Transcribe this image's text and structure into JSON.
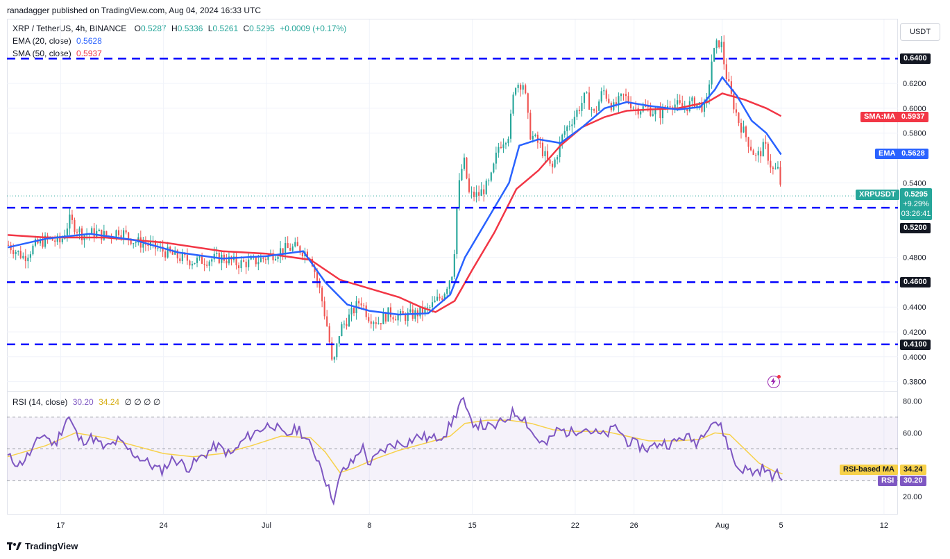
{
  "header": {
    "publisher": "ranadagger published on TradingView.com, Aug 04, 2024 16:33 UTC"
  },
  "legend": {
    "symbol": "XRP / TetherUS, 4h, BINANCE",
    "o_label": "O",
    "o": "0.5287",
    "h_label": "H",
    "h": "0.5336",
    "l_label": "L",
    "l": "0.5261",
    "c_label": "C",
    "c": "0.5295",
    "change": "+0.0009 (+0.17%)",
    "ema_label": "EMA (20, close)",
    "ema": "0.5628",
    "sma_label": "SMA (50, close)",
    "sma": "0.5937"
  },
  "currency_button": "USDT",
  "rsi_legend": {
    "label": "RSI (14, close)",
    "rsi": "30.20",
    "ma": "34.24",
    "extra": "∅ ∅ ∅ ∅"
  },
  "tags": {
    "sma_name": "SMA:MA",
    "sma_val": "0.5937",
    "ema_name": "EMA",
    "ema_val": "0.5628",
    "sym_name": "XRPUSDT",
    "sym_val": "0.5295",
    "sym_change": "+9.29%",
    "sym_timer": "03:26:41",
    "rsi_ma_name": "RSI-based MA",
    "rsi_ma_val": "34.24",
    "rsi_name": "RSI",
    "rsi_val": "30.20"
  },
  "levels": [
    {
      "value": 0.64,
      "label": "0.6400"
    },
    {
      "value": 0.52,
      "label": "0.5200"
    },
    {
      "value": 0.46,
      "label": "0.4600"
    },
    {
      "value": 0.41,
      "label": "0.4100"
    }
  ],
  "footer": {
    "brand": "TradingView"
  },
  "colors": {
    "up": "#26a69a",
    "down": "#ef5350",
    "ema": "#2962ff",
    "sma": "#f23645",
    "rsi": "#7e57c2",
    "rsi_ma": "#f7d14a",
    "level": "#0000ff"
  },
  "chart_data": {
    "type": "candlestick",
    "title": "XRP / TetherUS, 4h, BINANCE",
    "price_axis": {
      "ticks": [
        "0.6200",
        "0.6000",
        "0.5800",
        "0.5400",
        "0.4800",
        "0.4400",
        "0.4200",
        "0.4000",
        "0.3800"
      ],
      "range": [
        0.3725,
        0.6715
      ]
    },
    "time_axis": {
      "ticks": [
        {
          "label": "17",
          "day": 17
        },
        {
          "label": "24",
          "day": 24
        },
        {
          "label": "Jul",
          "day": 31
        },
        {
          "label": "8",
          "day": 38
        },
        {
          "label": "15",
          "day": 45
        },
        {
          "label": "22",
          "day": 52
        },
        {
          "label": "26",
          "day": 56
        },
        {
          "label": "Aug",
          "day": 62
        },
        {
          "label": "5",
          "day": 66
        },
        {
          "label": "12",
          "day": 73
        }
      ],
      "range": [
        13.35,
        73.95
      ]
    },
    "rsi_axis": {
      "ticks": [
        "80.00",
        "60.00",
        "20.00"
      ],
      "range": [
        9,
        86
      ],
      "bands": [
        30,
        50,
        70
      ]
    },
    "price_path": [
      [
        13.4,
        0.4905
      ],
      [
        14.5,
        0.48
      ],
      [
        15.3,
        0.49
      ],
      [
        16.2,
        0.495
      ],
      [
        17.0,
        0.492
      ],
      [
        17.6,
        0.51
      ],
      [
        18.5,
        0.498
      ],
      [
        19.3,
        0.5
      ],
      [
        20.2,
        0.497
      ],
      [
        21.0,
        0.502
      ],
      [
        22.0,
        0.493
      ],
      [
        23.0,
        0.49
      ],
      [
        24.0,
        0.485
      ],
      [
        25.0,
        0.48
      ],
      [
        26.0,
        0.477
      ],
      [
        27.0,
        0.478
      ],
      [
        28.0,
        0.48
      ],
      [
        29.0,
        0.475
      ],
      [
        30.0,
        0.476
      ],
      [
        31.0,
        0.48
      ],
      [
        32.0,
        0.486
      ],
      [
        33.0,
        0.488
      ],
      [
        34.0,
        0.482
      ],
      [
        34.7,
        0.45
      ],
      [
        35.2,
        0.42
      ],
      [
        35.5,
        0.39
      ],
      [
        36.0,
        0.422
      ],
      [
        36.8,
        0.435
      ],
      [
        37.4,
        0.446
      ],
      [
        37.9,
        0.433
      ],
      [
        38.6,
        0.428
      ],
      [
        39.3,
        0.435
      ],
      [
        40.2,
        0.432
      ],
      [
        41.0,
        0.434
      ],
      [
        42.0,
        0.438
      ],
      [
        43.0,
        0.45
      ],
      [
        43.7,
        0.47
      ],
      [
        44.0,
        0.53
      ],
      [
        44.4,
        0.56
      ],
      [
        44.8,
        0.53
      ],
      [
        45.4,
        0.53
      ],
      [
        46.2,
        0.54
      ],
      [
        46.8,
        0.57
      ],
      [
        47.5,
        0.58
      ],
      [
        47.9,
        0.62
      ],
      [
        48.5,
        0.62
      ],
      [
        48.9,
        0.58
      ],
      [
        49.6,
        0.57
      ],
      [
        50.4,
        0.55
      ],
      [
        51.2,
        0.58
      ],
      [
        52.0,
        0.595
      ],
      [
        52.7,
        0.61
      ],
      [
        53.3,
        0.595
      ],
      [
        53.9,
        0.615
      ],
      [
        54.6,
        0.6
      ],
      [
        55.3,
        0.61
      ],
      [
        56.1,
        0.6
      ],
      [
        56.9,
        0.6
      ],
      [
        57.7,
        0.595
      ],
      [
        58.5,
        0.605
      ],
      [
        59.3,
        0.6
      ],
      [
        60.1,
        0.605
      ],
      [
        60.9,
        0.6
      ],
      [
        61.3,
        0.64
      ],
      [
        61.6,
        0.65
      ],
      [
        61.9,
        0.655
      ],
      [
        62.2,
        0.63
      ],
      [
        62.6,
        0.61
      ],
      [
        63.1,
        0.59
      ],
      [
        63.7,
        0.575
      ],
      [
        64.3,
        0.56
      ],
      [
        64.9,
        0.57
      ],
      [
        65.4,
        0.55
      ],
      [
        65.8,
        0.55
      ],
      [
        66.1,
        0.5295
      ]
    ],
    "ema_path": [
      [
        13.4,
        0.488
      ],
      [
        16.0,
        0.495
      ],
      [
        19.0,
        0.499
      ],
      [
        22.0,
        0.494
      ],
      [
        25.0,
        0.484
      ],
      [
        28.0,
        0.479
      ],
      [
        31.0,
        0.481
      ],
      [
        33.5,
        0.485
      ],
      [
        35.0,
        0.46
      ],
      [
        36.5,
        0.442
      ],
      [
        38.0,
        0.437
      ],
      [
        40.0,
        0.434
      ],
      [
        42.0,
        0.435
      ],
      [
        43.5,
        0.45
      ],
      [
        44.5,
        0.48
      ],
      [
        46.0,
        0.51
      ],
      [
        47.5,
        0.54
      ],
      [
        48.2,
        0.57
      ],
      [
        49.5,
        0.575
      ],
      [
        51.0,
        0.572
      ],
      [
        52.5,
        0.585
      ],
      [
        54.0,
        0.6
      ],
      [
        55.5,
        0.605
      ],
      [
        57.0,
        0.602
      ],
      [
        59.0,
        0.599
      ],
      [
        60.5,
        0.601
      ],
      [
        61.5,
        0.615
      ],
      [
        62.0,
        0.625
      ],
      [
        63.0,
        0.61
      ],
      [
        64.0,
        0.59
      ],
      [
        65.0,
        0.58
      ],
      [
        66.0,
        0.5628
      ]
    ],
    "sma_path": [
      [
        13.4,
        0.498
      ],
      [
        16.0,
        0.496
      ],
      [
        20.0,
        0.496
      ],
      [
        24.0,
        0.492
      ],
      [
        28.0,
        0.485
      ],
      [
        31.0,
        0.483
      ],
      [
        34.0,
        0.478
      ],
      [
        36.0,
        0.462
      ],
      [
        38.0,
        0.455
      ],
      [
        40.0,
        0.448
      ],
      [
        41.5,
        0.44
      ],
      [
        42.5,
        0.436
      ],
      [
        43.8,
        0.445
      ],
      [
        45.0,
        0.47
      ],
      [
        46.5,
        0.5
      ],
      [
        48.0,
        0.535
      ],
      [
        49.5,
        0.55
      ],
      [
        51.0,
        0.57
      ],
      [
        52.5,
        0.585
      ],
      [
        54.0,
        0.593
      ],
      [
        55.5,
        0.598
      ],
      [
        57.0,
        0.599
      ],
      [
        59.0,
        0.6
      ],
      [
        61.0,
        0.605
      ],
      [
        62.0,
        0.612
      ],
      [
        63.5,
        0.607
      ],
      [
        65.0,
        0.6
      ],
      [
        66.0,
        0.5937
      ]
    ],
    "rsi_path": [
      [
        13.4,
        45
      ],
      [
        14.2,
        40
      ],
      [
        15.0,
        48
      ],
      [
        15.8,
        60
      ],
      [
        16.6,
        52
      ],
      [
        17.5,
        71
      ],
      [
        18.3,
        55
      ],
      [
        19.2,
        57
      ],
      [
        20.0,
        50
      ],
      [
        20.9,
        55
      ],
      [
        21.8,
        48
      ],
      [
        22.8,
        42
      ],
      [
        23.8,
        36
      ],
      [
        24.7,
        44
      ],
      [
        25.7,
        38
      ],
      [
        26.6,
        45
      ],
      [
        27.6,
        52
      ],
      [
        28.6,
        46
      ],
      [
        29.5,
        56
      ],
      [
        30.5,
        62
      ],
      [
        31.4,
        66
      ],
      [
        32.2,
        58
      ],
      [
        33.2,
        63
      ],
      [
        34.1,
        50
      ],
      [
        34.7,
        40
      ],
      [
        35.2,
        25
      ],
      [
        35.6,
        18
      ],
      [
        36.1,
        35
      ],
      [
        36.9,
        42
      ],
      [
        37.5,
        52
      ],
      [
        38.0,
        40
      ],
      [
        38.8,
        48
      ],
      [
        39.6,
        53
      ],
      [
        40.5,
        54
      ],
      [
        41.4,
        58
      ],
      [
        42.3,
        56
      ],
      [
        43.2,
        60
      ],
      [
        43.8,
        70
      ],
      [
        44.3,
        82
      ],
      [
        44.8,
        68
      ],
      [
        45.5,
        65
      ],
      [
        46.4,
        63
      ],
      [
        47.2,
        68
      ],
      [
        47.8,
        73
      ],
      [
        48.5,
        70
      ],
      [
        49.2,
        58
      ],
      [
        50.0,
        52
      ],
      [
        50.8,
        62
      ],
      [
        51.7,
        60
      ],
      [
        52.5,
        64
      ],
      [
        53.3,
        60
      ],
      [
        54.0,
        58
      ],
      [
        54.8,
        64
      ],
      [
        55.5,
        55
      ],
      [
        56.3,
        52
      ],
      [
        57.0,
        50
      ],
      [
        57.8,
        54
      ],
      [
        58.6,
        53
      ],
      [
        59.4,
        58
      ],
      [
        60.3,
        54
      ],
      [
        61.0,
        65
      ],
      [
        61.5,
        68
      ],
      [
        62.0,
        62
      ],
      [
        62.5,
        50
      ],
      [
        63.0,
        38
      ],
      [
        63.6,
        37
      ],
      [
        64.2,
        35
      ],
      [
        64.8,
        38
      ],
      [
        65.3,
        33
      ],
      [
        65.8,
        34
      ],
      [
        66.1,
        30.2
      ]
    ],
    "rsi_ma_path": [
      [
        13.4,
        45
      ],
      [
        16.0,
        52
      ],
      [
        18.0,
        60
      ],
      [
        20.0,
        57
      ],
      [
        22.0,
        52
      ],
      [
        24.0,
        47
      ],
      [
        26.0,
        45
      ],
      [
        28.0,
        47
      ],
      [
        30.0,
        52
      ],
      [
        32.0,
        58
      ],
      [
        34.0,
        57
      ],
      [
        35.0,
        48
      ],
      [
        36.0,
        35
      ],
      [
        37.0,
        38
      ],
      [
        38.5,
        44
      ],
      [
        40.0,
        49
      ],
      [
        42.0,
        54
      ],
      [
        43.5,
        58
      ],
      [
        44.5,
        66
      ],
      [
        46.0,
        68
      ],
      [
        47.5,
        68
      ],
      [
        49.0,
        66
      ],
      [
        50.5,
        62
      ],
      [
        52.0,
        61
      ],
      [
        54.0,
        61
      ],
      [
        55.5,
        58
      ],
      [
        57.0,
        55
      ],
      [
        59.0,
        55
      ],
      [
        60.5,
        56
      ],
      [
        61.5,
        60
      ],
      [
        62.5,
        59
      ],
      [
        63.5,
        50
      ],
      [
        64.5,
        41
      ],
      [
        65.5,
        36
      ],
      [
        66.1,
        34.24
      ]
    ]
  }
}
